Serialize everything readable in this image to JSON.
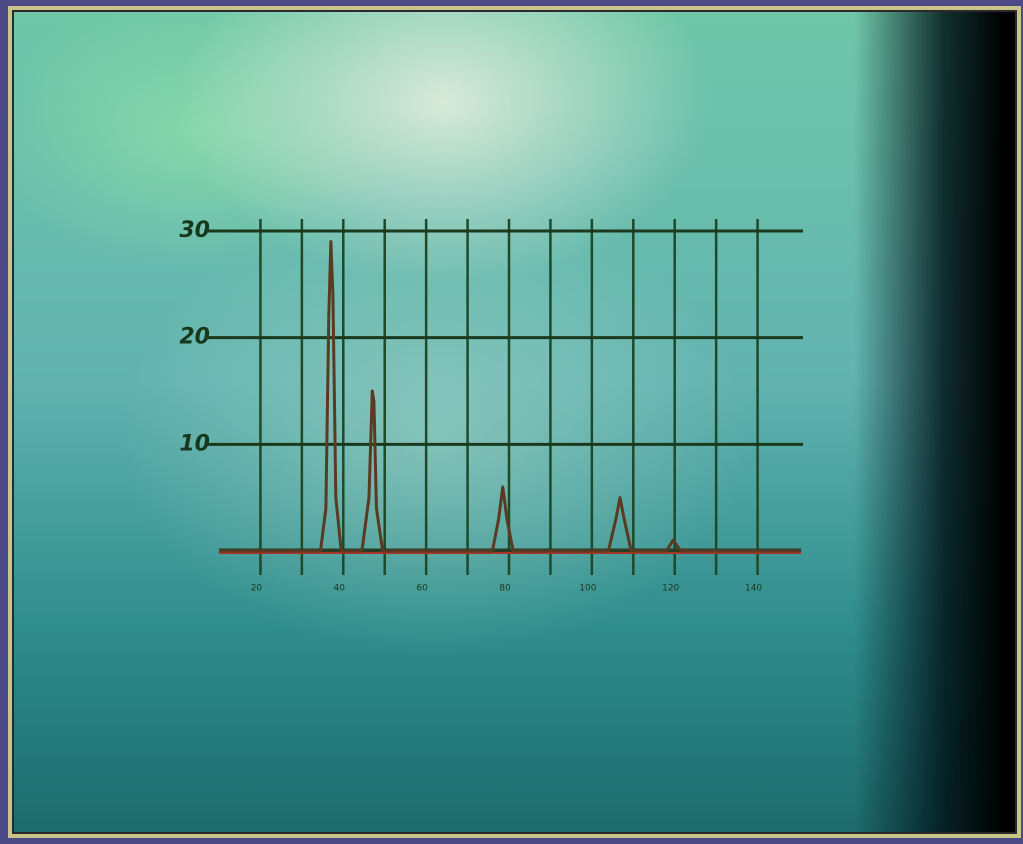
{
  "chart_data": {
    "type": "line",
    "x": [
      10,
      34.5,
      35.8,
      36.5,
      37,
      37.5,
      38.2,
      39.5,
      44.5,
      46.2,
      47,
      47.4,
      48,
      49.5,
      76,
      77.5,
      78.5,
      79.5,
      81,
      104,
      105.8,
      106.8,
      107.8,
      109.5,
      118,
      119.6,
      121.5,
      150
    ],
    "series": [
      {
        "color": "#5a3a22",
        "values": [
          0,
          0,
          4,
          22,
          29,
          24,
          5,
          0,
          0,
          5,
          15,
          14,
          4,
          0,
          0,
          3,
          6,
          3,
          0,
          0,
          3,
          5,
          3,
          0,
          0,
          1,
          0,
          0
        ]
      }
    ],
    "xlim": [
      10,
      150
    ],
    "xticks": [
      20,
      40,
      60,
      80,
      100,
      120,
      140
    ],
    "xgrid": [
      20,
      30,
      40,
      50,
      60,
      70,
      80,
      90,
      100,
      110,
      120,
      130,
      140
    ],
    "ylim": [
      0,
      30
    ],
    "yticks": [
      10,
      20,
      30
    ],
    "grid": true
  }
}
